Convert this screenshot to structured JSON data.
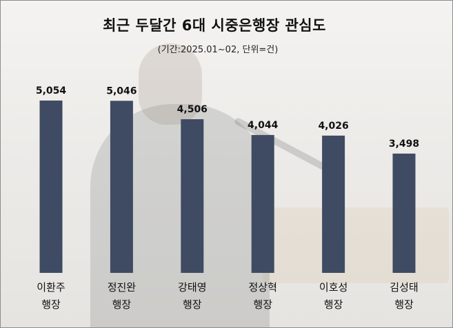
{
  "title": "최근 두달간 6대 시중은행장 관심도",
  "subtitle": "(기간:2025.01~02, 단위=건)",
  "colors": {
    "bar": "#3f4b62"
  },
  "chart_data": {
    "type": "bar",
    "categories": [
      [
        "이환주",
        "행장"
      ],
      [
        "정진완",
        "행장"
      ],
      [
        "강태영",
        "행장"
      ],
      [
        "정상혁",
        "행장"
      ],
      [
        "이호성",
        "행장"
      ],
      [
        "김성태",
        "행장"
      ]
    ],
    "values": [
      5054,
      5046,
      4506,
      4044,
      4026,
      3498
    ],
    "value_labels": [
      "5,054",
      "5,046",
      "4,506",
      "4,044",
      "4,026",
      "3,498"
    ],
    "title": "최근 두달간 6대 시중은행장 관심도",
    "subtitle": "(기간:2025.01~02, 단위=건)",
    "ylim": [
      0,
      5800
    ],
    "grid": false,
    "legend": "none"
  }
}
